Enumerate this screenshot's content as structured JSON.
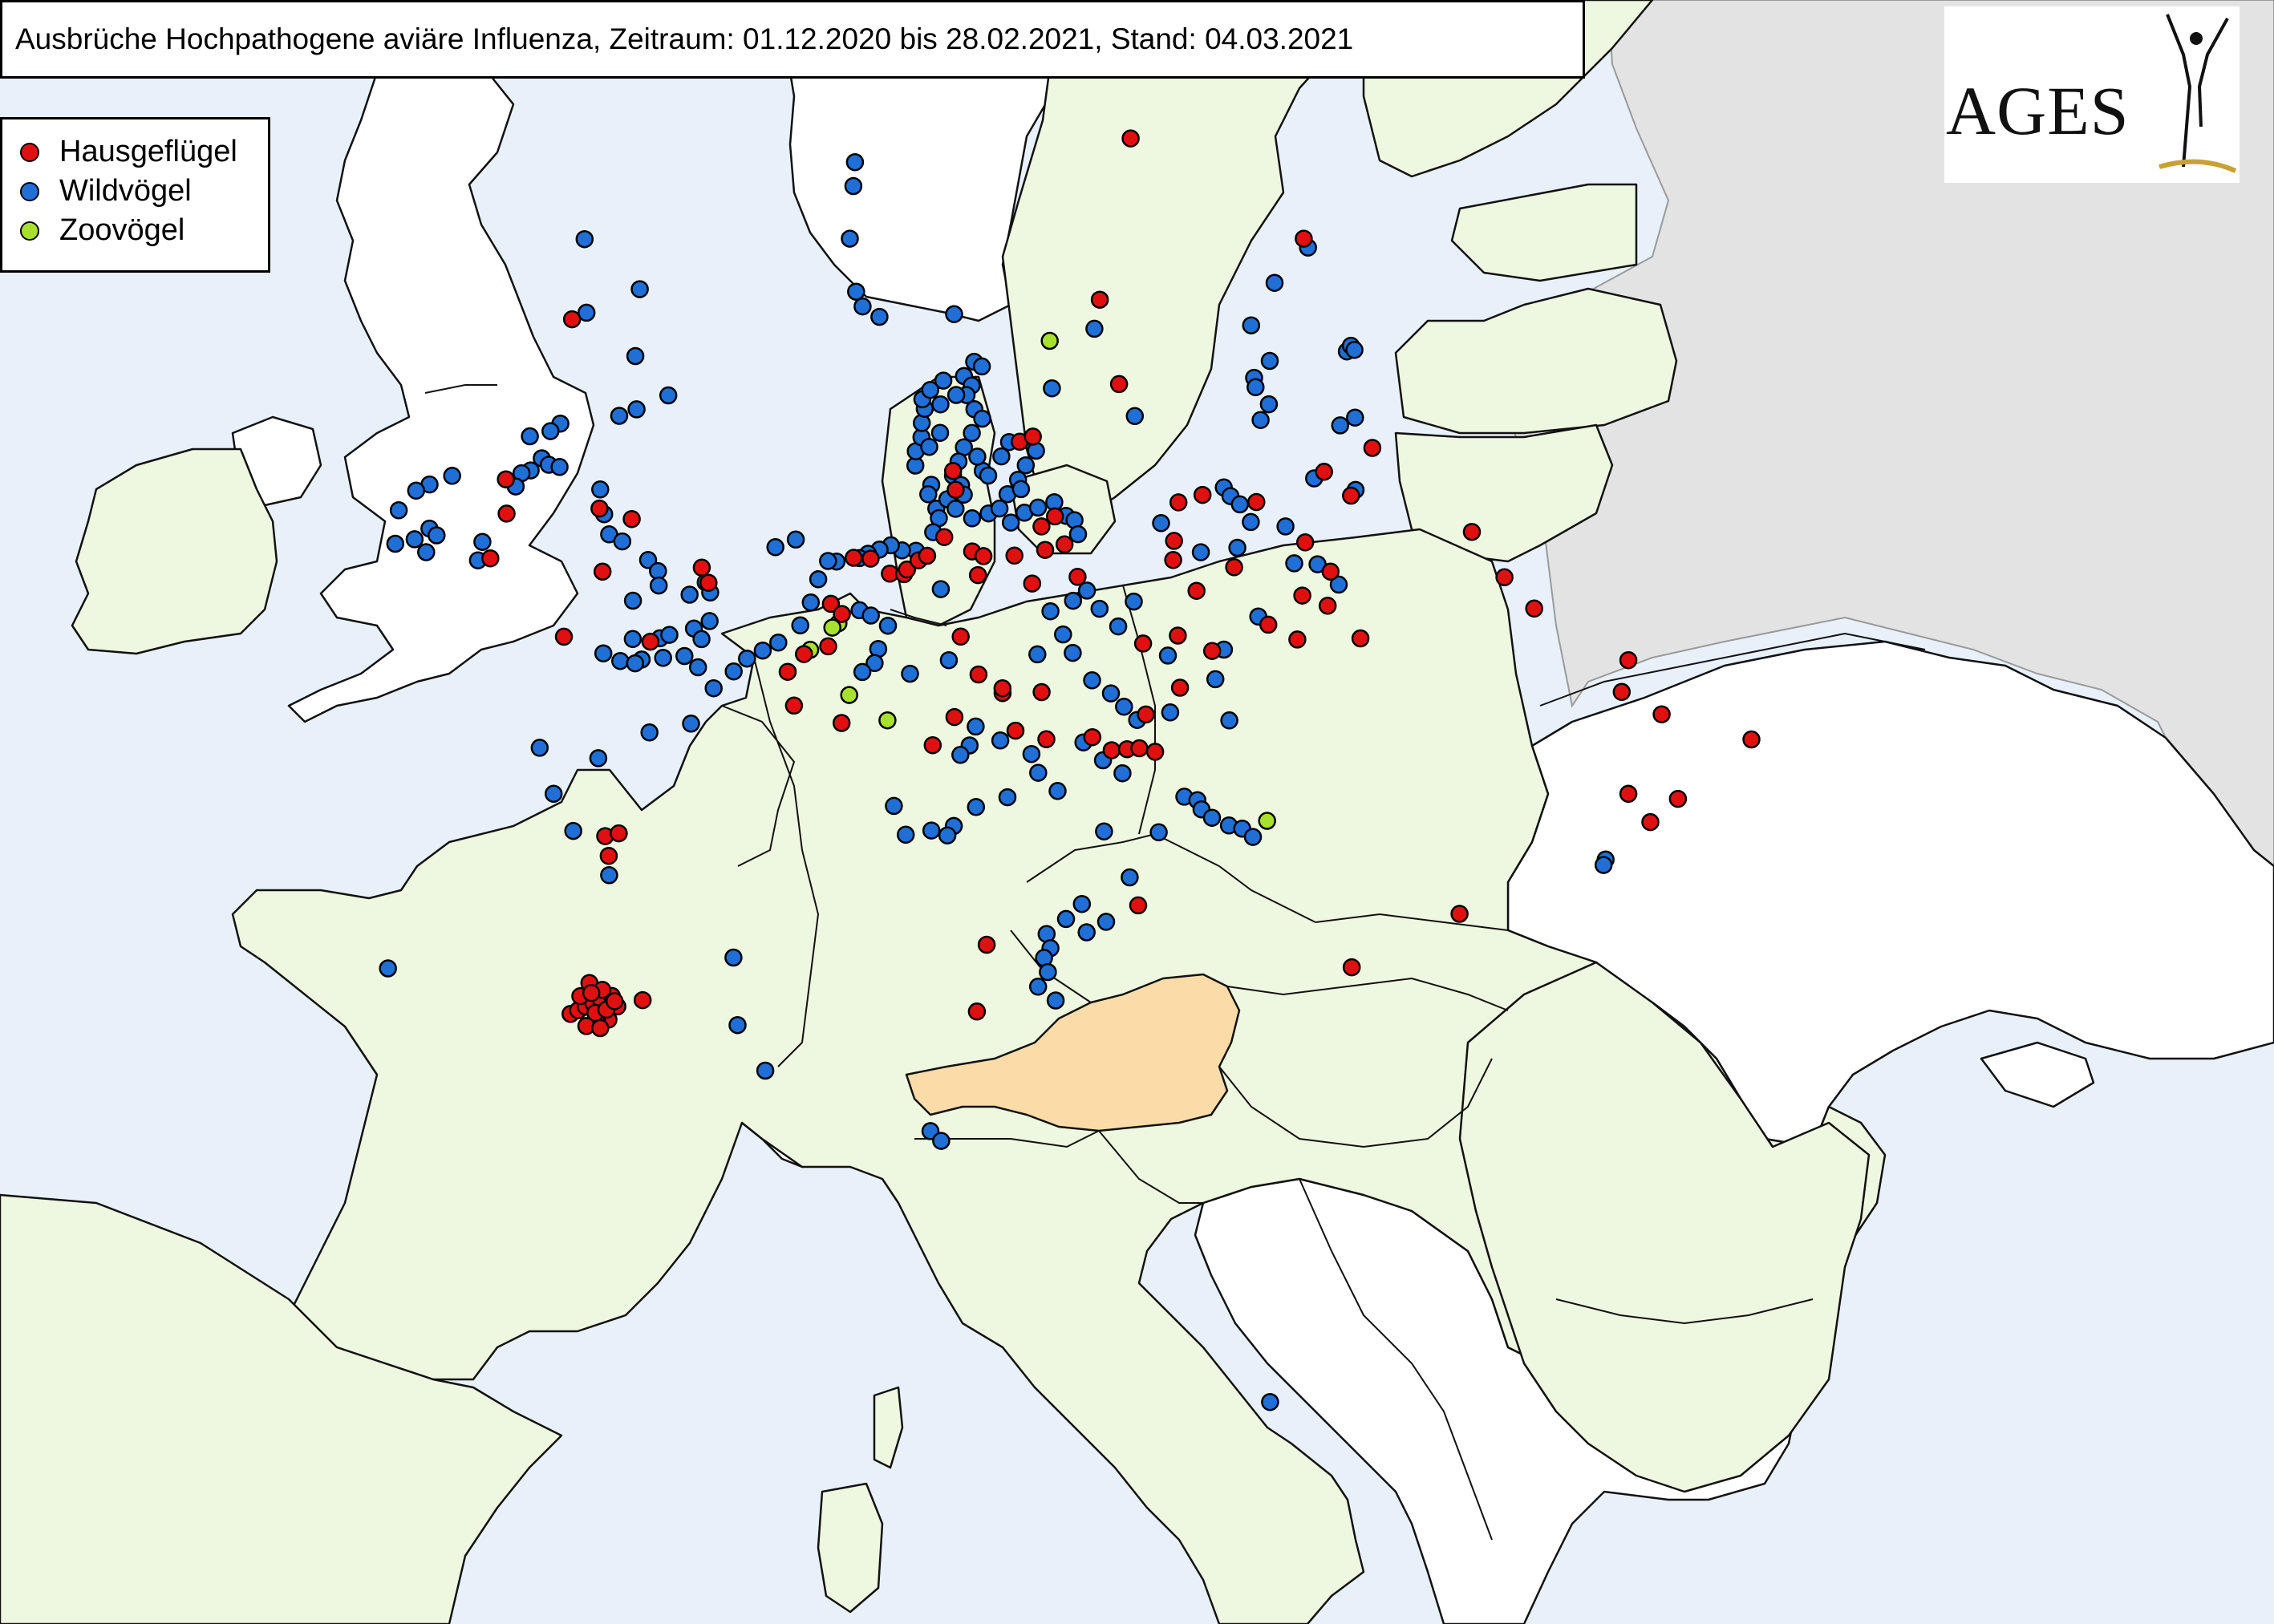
{
  "title": "Ausbrüche Hochpathogene aviäre Influenza, Zeitraum: 01.12.2020 bis 28.02.2021, Stand: 04.03.2021",
  "logo": {
    "text": "AGES"
  },
  "colors": {
    "sea": "#e8f1fa",
    "eu_land": "#eef7df",
    "non_eu_land": "#ffffff",
    "outside_land": "#e3e3e3",
    "austria": "#fbdca8",
    "border": "#000000",
    "hausgefluegel": "#e01010",
    "wildvoegel": "#1f6fd6",
    "zoovoegel": "#a8e02e"
  },
  "legend": {
    "items": [
      {
        "key": "hausgefluegel",
        "label": "Hausgeflügel",
        "color": "#e01010"
      },
      {
        "key": "wildvoegel",
        "label": "Wildvögel",
        "color": "#1f6fd6"
      },
      {
        "key": "zoovoegel",
        "label": "Zoovögel",
        "color": "#a8e02e"
      }
    ]
  },
  "outbreaks": {
    "hausgefluegel": [
      [
        62.1,
        17.3
      ],
      [
        59.5,
        24.0
      ],
      [
        58.8,
        15.4
      ],
      [
        57.0,
        15.9
      ],
      [
        57.6,
        -5.6
      ],
      [
        54.0,
        -6.7
      ],
      [
        53.3,
        -6.4
      ],
      [
        52.3,
        -6.6
      ],
      [
        53.8,
        -3.2
      ],
      [
        53.7,
        -2.0
      ],
      [
        52.5,
        -2.7
      ],
      [
        52.6,
        1.0
      ],
      [
        52.9,
        0.7
      ],
      [
        51.2,
        -0.7
      ],
      [
        51.0,
        -3.6
      ],
      [
        55.3,
        9.5
      ],
      [
        55.9,
        12.0
      ],
      [
        56.0,
        12.5
      ],
      [
        54.9,
        9.6
      ],
      [
        53.4,
        6.6
      ],
      [
        53.1,
        7.3
      ],
      [
        53.1,
        7.8
      ],
      [
        53.2,
        7.9
      ],
      [
        53.4,
        8.3
      ],
      [
        53.5,
        8.6
      ],
      [
        53.9,
        9.2
      ],
      [
        53.6,
        10.2
      ],
      [
        53.5,
        10.6
      ],
      [
        53.1,
        10.4
      ],
      [
        53.5,
        11.7
      ],
      [
        53.6,
        12.8
      ],
      [
        54.1,
        12.7
      ],
      [
        54.3,
        13.2
      ],
      [
        53.7,
        13.5
      ],
      [
        53.0,
        13.9
      ],
      [
        52.9,
        12.3
      ],
      [
        53.4,
        6.0
      ],
      [
        52.4,
        5.3
      ],
      [
        52.2,
        5.7
      ],
      [
        51.5,
        5.3
      ],
      [
        51.3,
        4.5
      ],
      [
        50.9,
        4.0
      ],
      [
        50.2,
        4.3
      ],
      [
        51.8,
        9.8
      ],
      [
        51.0,
        10.4
      ],
      [
        50.6,
        12.5
      ],
      [
        50.6,
        11.2
      ],
      [
        50.1,
        9.6
      ],
      [
        49.8,
        11.6
      ],
      [
        49.6,
        12.6
      ],
      [
        49.6,
        14.1
      ],
      [
        49.3,
        14.7
      ],
      [
        49.3,
        15.2
      ],
      [
        49.3,
        15.6
      ],
      [
        49.2,
        16.1
      ],
      [
        50.0,
        15.9
      ],
      [
        50.5,
        17.1
      ],
      [
        51.5,
        16.0
      ],
      [
        51.6,
        17.2
      ],
      [
        51.2,
        18.3
      ],
      [
        51.6,
        20.3
      ],
      [
        51.2,
        21.2
      ],
      [
        52.1,
        21.6
      ],
      [
        52.5,
        22.7
      ],
      [
        51.8,
        22.4
      ],
      [
        51.0,
        23.3
      ],
      [
        52.5,
        18.0
      ],
      [
        52.9,
        19.4
      ],
      [
        53.2,
        17.3
      ],
      [
        53.6,
        17.4
      ],
      [
        54.4,
        17.7
      ],
      [
        54.5,
        18.6
      ],
      [
        54.2,
        20.5
      ],
      [
        53.2,
        22.0
      ],
      [
        54.0,
        23.9
      ],
      [
        54.6,
        23.1
      ],
      [
        54.9,
        25.0
      ],
      [
        52.7,
        27.8
      ],
      [
        51.6,
        28.5
      ],
      [
        50.8,
        29.2
      ],
      [
        49.2,
        31.7
      ],
      [
        48.6,
        31.2
      ],
      [
        47.9,
        32.2
      ],
      [
        46.8,
        34.6
      ],
      [
        46.5,
        30.5
      ],
      [
        46.1,
        31.9
      ],
      [
        45.8,
        30.9
      ],
      [
        46.0,
        15.2
      ],
      [
        45.3,
        10.6
      ],
      [
        43.9,
        10.3
      ],
      [
        44.2,
        21.3
      ],
      [
        44.9,
        24.7
      ],
      [
        43.2,
        -1.4
      ],
      [
        43.3,
        -1.2
      ],
      [
        43.4,
        -1.0
      ],
      [
        43.5,
        -0.8
      ],
      [
        43.6,
        -0.6
      ],
      [
        43.7,
        -0.3
      ],
      [
        43.5,
        -0.1
      ],
      [
        43.2,
        -0.3
      ],
      [
        43.1,
        -0.6
      ],
      [
        43.3,
        -0.7
      ],
      [
        43.6,
        -1.2
      ],
      [
        43.9,
        -1.0
      ],
      [
        43.8,
        -0.6
      ],
      [
        43.4,
        -0.4
      ],
      [
        43.6,
        -0.2
      ],
      [
        43.7,
        -0.9
      ],
      [
        43.0,
        -0.9
      ],
      [
        43.0,
        -0.5
      ],
      [
        43.7,
        0.6
      ],
      [
        46.6,
        -1.0
      ],
      [
        47.0,
        -1.2
      ],
      [
        47.1,
        -0.8
      ],
      [
        49.9,
        5.9
      ],
      [
        50.7,
        11.2
      ],
      [
        49.5,
        8.9
      ]
    ],
    "wildvoegel": [
      [
        61.7,
        5.1
      ],
      [
        61.2,
        5.1
      ],
      [
        60.1,
        5.1
      ],
      [
        59.0,
        5.5
      ],
      [
        58.7,
        5.8
      ],
      [
        58.5,
        6.5
      ],
      [
        58.6,
        9.5
      ],
      [
        58.2,
        15.1
      ],
      [
        57.0,
        13.3
      ],
      [
        56.3,
        16.4
      ],
      [
        59.3,
        24.1
      ],
      [
        58.7,
        22.5
      ],
      [
        57.9,
        21.3
      ],
      [
        57.1,
        21.8
      ],
      [
        57.0,
        24.8
      ],
      [
        57.1,
        25.0
      ],
      [
        57.0,
        25.1
      ],
      [
        56.8,
        21.1
      ],
      [
        56.6,
        21.1
      ],
      [
        55.9,
        21.1
      ],
      [
        55.6,
        24.6
      ],
      [
        55.5,
        24.0
      ],
      [
        56.2,
        21.5
      ],
      [
        59.3,
        -5.8
      ],
      [
        58.5,
        -3.2
      ],
      [
        57.8,
        -5.1
      ],
      [
        57.1,
        -2.9
      ],
      [
        56.4,
        -1.4
      ],
      [
        56.0,
        -2.5
      ],
      [
        55.8,
        -3.1
      ],
      [
        55.4,
        -5.2
      ],
      [
        55.2,
        -5.5
      ],
      [
        55.0,
        -6.2
      ],
      [
        54.6,
        -5.6
      ],
      [
        54.5,
        -5.3
      ],
      [
        54.3,
        -5.9
      ],
      [
        54.2,
        -6.2
      ],
      [
        53.9,
        -6.3
      ],
      [
        53.8,
        -8.6
      ],
      [
        53.5,
        -9.3
      ],
      [
        53.3,
        -9.7
      ],
      [
        52.8,
        -10.1
      ],
      [
        52.6,
        -8.9
      ],
      [
        52.5,
        -8.6
      ],
      [
        52.3,
        -9.3
      ],
      [
        52.1,
        -9.9
      ],
      [
        52.2,
        -7.0
      ],
      [
        52.1,
        -8.8
      ],
      [
        52.6,
        -7.0
      ],
      [
        54.5,
        -4.9
      ],
      [
        54.2,
        -3.3
      ],
      [
        53.7,
        -3.0
      ],
      [
        53.3,
        -2.7
      ],
      [
        53.2,
        -2.2
      ],
      [
        52.9,
        -1.2
      ],
      [
        52.7,
        -0.8
      ],
      [
        52.4,
        -0.7
      ],
      [
        52.0,
        -1.5
      ],
      [
        52.3,
        0.4
      ],
      [
        52.6,
        0.9
      ],
      [
        52.4,
        1.1
      ],
      [
        51.8,
        1.2
      ],
      [
        51.6,
        0.7
      ],
      [
        51.3,
        -0.4
      ],
      [
        51.2,
        -1.3
      ],
      [
        50.8,
        -2.2
      ],
      [
        50.8,
        -0.9
      ],
      [
        50.7,
        -1.6
      ],
      [
        50.7,
        -1.1
      ],
      [
        50.9,
        -0.2
      ],
      [
        51.4,
        -0.1
      ],
      [
        51.4,
        1.0
      ],
      [
        51.0,
        0.5
      ],
      [
        50.8,
        1.0
      ],
      [
        55.4,
        8.1
      ],
      [
        55.7,
        8.1
      ],
      [
        56.0,
        8.3
      ],
      [
        56.3,
        8.3
      ],
      [
        56.6,
        8.4
      ],
      [
        56.8,
        8.3
      ],
      [
        57.0,
        8.6
      ],
      [
        57.2,
        9.1
      ],
      [
        57.3,
        9.9
      ],
      [
        57.6,
        10.3
      ],
      [
        57.5,
        10.6
      ],
      [
        57.1,
        10.2
      ],
      [
        56.9,
        10.0
      ],
      [
        56.6,
        10.3
      ],
      [
        56.4,
        10.6
      ],
      [
        56.1,
        10.2
      ],
      [
        55.8,
        9.9
      ],
      [
        55.5,
        9.7
      ],
      [
        55.2,
        9.5
      ],
      [
        55.0,
        9.8
      ],
      [
        54.8,
        9.9
      ],
      [
        55.3,
        10.6
      ],
      [
        55.6,
        10.4
      ],
      [
        55.6,
        11.3
      ],
      [
        55.9,
        11.6
      ],
      [
        55.9,
        12.4
      ],
      [
        55.7,
        12.6
      ],
      [
        55.4,
        12.2
      ],
      [
        55.1,
        11.9
      ],
      [
        54.8,
        11.5
      ],
      [
        54.9,
        12.0
      ],
      [
        55.2,
        10.8
      ],
      [
        56.7,
        9.0
      ],
      [
        56.9,
        9.6
      ],
      [
        56.1,
        9.0
      ],
      [
        55.8,
        8.6
      ],
      [
        55.0,
        8.7
      ],
      [
        54.8,
        8.6
      ],
      [
        54.5,
        8.9
      ],
      [
        54.3,
        9.0
      ],
      [
        54.0,
        8.8
      ],
      [
        54.7,
        9.3
      ],
      [
        54.5,
        9.6
      ],
      [
        54.3,
        10.2
      ],
      [
        54.4,
        10.8
      ],
      [
        54.5,
        11.2
      ],
      [
        54.2,
        11.6
      ],
      [
        54.4,
        12.1
      ],
      [
        54.5,
        12.6
      ],
      [
        54.6,
        13.2
      ],
      [
        54.3,
        13.6
      ],
      [
        54.2,
        13.9
      ],
      [
        53.9,
        14.0
      ],
      [
        53.6,
        8.2
      ],
      [
        53.6,
        7.7
      ],
      [
        53.7,
        7.3
      ],
      [
        53.6,
        6.9
      ],
      [
        53.5,
        6.5
      ],
      [
        53.4,
        6.2
      ],
      [
        53.3,
        5.4
      ],
      [
        53.3,
        5.1
      ],
      [
        52.9,
        4.8
      ],
      [
        52.4,
        4.6
      ],
      [
        51.9,
        4.3
      ],
      [
        51.5,
        3.6
      ],
      [
        51.3,
        3.1
      ],
      [
        51.1,
        2.6
      ],
      [
        50.8,
        2.2
      ],
      [
        50.4,
        1.6
      ],
      [
        49.6,
        1.0
      ],
      [
        49.3,
        -0.3
      ],
      [
        48.6,
        -1.8
      ],
      [
        48.6,
        -3.7
      ],
      [
        47.7,
        -3.0
      ],
      [
        47.0,
        -2.2
      ],
      [
        46.2,
        -0.9
      ],
      [
        43.4,
        -6.8
      ],
      [
        42.5,
        4.3
      ],
      [
        44.8,
        3.1
      ],
      [
        43.4,
        3.4
      ],
      [
        52.3,
        6.3
      ],
      [
        52.2,
        6.7
      ],
      [
        52.0,
        7.3
      ],
      [
        51.5,
        7.0
      ],
      [
        51.2,
        6.9
      ],
      [
        51.0,
        6.5
      ],
      [
        52.8,
        9.1
      ],
      [
        51.3,
        9.4
      ],
      [
        51.0,
        8.1
      ],
      [
        49.9,
        10.3
      ],
      [
        49.5,
        10.1
      ],
      [
        49.3,
        9.8
      ],
      [
        49.6,
        11.1
      ],
      [
        49.3,
        12.1
      ],
      [
        48.9,
        12.3
      ],
      [
        48.5,
        12.9
      ],
      [
        48.2,
        10.3
      ],
      [
        48.4,
        11.3
      ],
      [
        47.7,
        8.9
      ],
      [
        47.8,
        9.6
      ],
      [
        47.6,
        9.4
      ],
      [
        48.2,
        7.7
      ],
      [
        47.6,
        8.1
      ],
      [
        51.4,
        12.4
      ],
      [
        51.4,
        13.6
      ],
      [
        51.8,
        13.3
      ],
      [
        52.3,
        12.9
      ],
      [
        52.5,
        13.7
      ],
      [
        52.7,
        14.2
      ],
      [
        50.8,
        14.2
      ],
      [
        50.5,
        14.8
      ],
      [
        50.2,
        15.2
      ],
      [
        49.9,
        15.6
      ],
      [
        50.0,
        16.7
      ],
      [
        49.5,
        13.8
      ],
      [
        49.1,
        14.4
      ],
      [
        48.8,
        15.0
      ],
      [
        48.2,
        16.9
      ],
      [
        48.1,
        17.3
      ],
      [
        47.9,
        17.4
      ],
      [
        47.7,
        17.7
      ],
      [
        47.5,
        18.2
      ],
      [
        47.4,
        18.6
      ],
      [
        47.2,
        18.9
      ],
      [
        53.3,
        18.3
      ],
      [
        53.3,
        19.6
      ],
      [
        53.8,
        20.2
      ],
      [
        52.8,
        21.5
      ],
      [
        52.7,
        22.3
      ],
      [
        54.6,
        19.4
      ],
      [
        54.4,
        19.6
      ],
      [
        54.2,
        19.9
      ],
      [
        54.0,
        17.0
      ],
      [
        53.6,
        21.4
      ],
      [
        54.5,
        22.7
      ],
      [
        54.1,
        24.1
      ],
      [
        51.2,
        18.7
      ],
      [
        52.2,
        22.9
      ],
      [
        47.6,
        14.3
      ],
      [
        46.6,
        15.0
      ],
      [
        46.1,
        13.5
      ],
      [
        45.7,
        14.2
      ],
      [
        45.5,
        13.6
      ],
      [
        45.8,
        13.0
      ],
      [
        45.5,
        12.4
      ],
      [
        45.2,
        12.5
      ],
      [
        45.0,
        12.3
      ],
      [
        44.7,
        12.4
      ],
      [
        44.4,
        12.1
      ],
      [
        44.1,
        12.6
      ],
      [
        45.3,
        29.3
      ],
      [
        45.2,
        29.2
      ],
      [
        41.4,
        9.0
      ],
      [
        41.2,
        9.3
      ],
      [
        35.5,
        17.6
      ],
      [
        53.5,
        3.2
      ],
      [
        53.7,
        3.9
      ],
      [
        52.4,
        15.8
      ],
      [
        52.3,
        14.6
      ],
      [
        51.9,
        15.2
      ],
      [
        51.2,
        16.8
      ],
      [
        49.7,
        18.6
      ],
      [
        47.5,
        16.0
      ],
      [
        50.6,
        18.3
      ],
      [
        51.8,
        20.0
      ]
    ],
    "zoovoegel": [
      [
        58.0,
        13.3
      ],
      [
        52.0,
        5.6
      ],
      [
        51.9,
        5.4
      ],
      [
        51.4,
        4.7
      ],
      [
        50.5,
        6.1
      ],
      [
        50.0,
        7.4
      ],
      [
        47.5,
        19.4
      ]
    ]
  }
}
